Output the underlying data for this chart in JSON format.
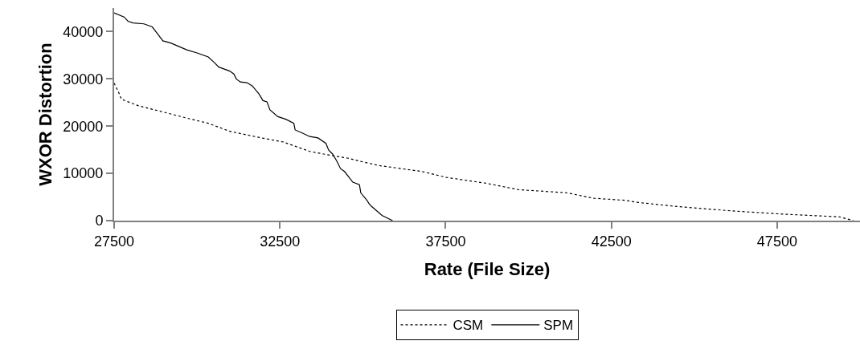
{
  "chart_data": {
    "type": "line",
    "xlabel": "Rate (File Size)",
    "ylabel": "WXOR Distortion",
    "xlim": [
      27500,
      50000
    ],
    "xticks": [
      27500,
      32500,
      37500,
      42500,
      47500
    ],
    "ylim": [
      0,
      45000
    ],
    "yticks": [
      0,
      10000,
      20000,
      30000,
      40000
    ],
    "grid": false,
    "legend": "bottom",
    "marker": "none",
    "series": [
      {
        "name": "CSM",
        "color": "#000000",
        "line_style": "dotted",
        "x": [
          27500,
          27640,
          27720,
          27880,
          28240,
          28890,
          29690,
          30340,
          30990,
          31950,
          32600,
          33400,
          34050,
          34530,
          35020,
          35500,
          36790,
          37520,
          38730,
          39700,
          41150,
          41950,
          42920,
          43240,
          44540,
          46150,
          47760,
          49380,
          49800
        ],
        "values": [
          29100,
          27100,
          25700,
          25250,
          24300,
          23150,
          21700,
          20600,
          18900,
          17500,
          16650,
          14650,
          13800,
          13250,
          12400,
          11650,
          10400,
          9150,
          7900,
          6550,
          5900,
          4750,
          4300,
          3900,
          2950,
          2050,
          1350,
          800,
          0
        ]
      },
      {
        "name": "SPM",
        "color": "#000000",
        "line_style": "solid",
        "x": [
          27500,
          27800,
          27920,
          28080,
          28400,
          28650,
          28810,
          28970,
          29210,
          29690,
          30020,
          30340,
          30500,
          30660,
          30990,
          31110,
          31190,
          31310,
          31510,
          31670,
          31870,
          31990,
          32110,
          32200,
          32440,
          32680,
          32920,
          32960,
          33160,
          33400,
          33650,
          33890,
          33970,
          34090,
          34210,
          34330,
          34450,
          34700,
          34900,
          34940,
          35140,
          35180,
          35260,
          35580,
          35900
        ],
        "values": [
          43950,
          43100,
          42200,
          41850,
          41650,
          41000,
          39550,
          38050,
          37600,
          36150,
          35450,
          34650,
          33600,
          32500,
          31650,
          31050,
          29950,
          29350,
          29200,
          28500,
          26800,
          25400,
          25150,
          23450,
          22000,
          21450,
          20600,
          19200,
          18600,
          17800,
          17500,
          16350,
          14950,
          14100,
          12700,
          11000,
          10400,
          8150,
          7600,
          5900,
          4200,
          3650,
          3050,
          1100,
          0
        ]
      }
    ]
  }
}
